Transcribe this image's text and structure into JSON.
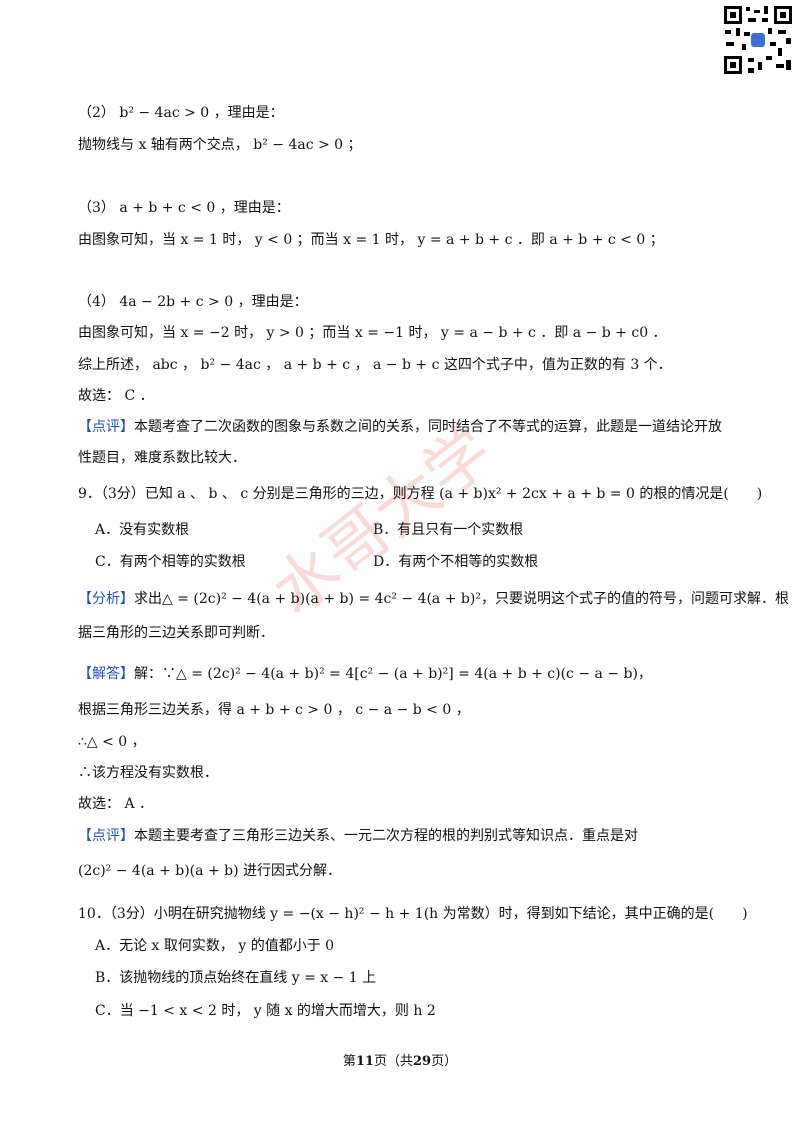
{
  "content": [
    {
      "text": "（2） b² − 4ac > 0 ，理由是："
    },
    {
      "text": "抛物线与 x 轴有两个交点， b² − 4ac > 0 ；"
    },
    {
      "text": "（3） a + b + c < 0 ，理由是："
    },
    {
      "text": "由图象可知，当 x = 1 时， y < 0 ；而当 x = 1 时， y = a + b + c ．即 a + b + c < 0 ；"
    },
    {
      "text": "（4） 4a − 2b + c > 0 ，理由是："
    },
    {
      "text": "由图象可知，当 x = −2 时， y > 0 ；而当 x = −1 时， y = a − b + c ．即 a − b + c0 ．"
    },
    {
      "text": "综上所述， abc ， b² − 4ac ， a + b + c ， a − b + c 这四个式子中，值为正数的有 3 个．"
    },
    {
      "text": "故选： C ．"
    },
    {
      "tag": "【点评】",
      "text": "本题考查了二次函数的图象与系数之间的关系，同时结合了不等式的运算，此题是一道结论开放"
    },
    {
      "text": "性题目，难度系数比较大．"
    },
    {
      "text": "9．（3分）已知 a 、 b 、 c 分别是三角形的三边，则方程 (a + b)x² + 2cx + a + b = 0 的根的情况是(　　)"
    },
    {
      "options": [
        "A．没有实数根",
        "B．有且只有一个实数根"
      ]
    },
    {
      "options": [
        "C．有两个相等的实数根",
        "D．有两个不相等的实数根"
      ]
    },
    {
      "tag": "【分析】",
      "text": "求出△ = (2c)² − 4(a + b)(a + b) = 4c² − 4(a + b)²，只要说明这个式子的值的符号，问题可求解．根"
    },
    {
      "text": "据三角形的三边关系即可判断．"
    },
    {
      "tag": "【解答】",
      "text": "解：∵△ = (2c)² − 4(a + b)² = 4[c² − (a + b)²] = 4(a + b + c)(c − a − b)，"
    },
    {
      "text": "根据三角形三边关系，得 a + b + c > 0 ， c − a − b < 0 ，"
    },
    {
      "text": "∴△ < 0 ，"
    },
    {
      "text": "∴该方程没有实数根．"
    },
    {
      "text": "故选： A ．"
    },
    {
      "tag": "【点评】",
      "text": "本题主要考查了三角形三边关系、一元二次方程的根的判别式等知识点．重点是对"
    },
    {
      "text": "(2c)² − 4(a + b)(a + b) 进行因式分解．"
    },
    {
      "text": "10．（3分）小明在研究抛物线 y = −(x − h)² − h + 1(h 为常数）时，得到如下结论，其中正确的是(　　)"
    },
    {
      "text": "A．无论 x 取何实数， y 的值都小于 0"
    },
    {
      "text": "B．该抛物线的顶点始终在直线 y = x − 1 上"
    },
    {
      "text": "C．当 −1 < x < 2 时， y 随 x 的增大而增大，则 h  2"
    }
  ],
  "watermark": "水哥大学",
  "footer": {
    "prefix": "第",
    "page": 11,
    "middle": "页（共",
    "total": 29,
    "suffix": "页）"
  }
}
